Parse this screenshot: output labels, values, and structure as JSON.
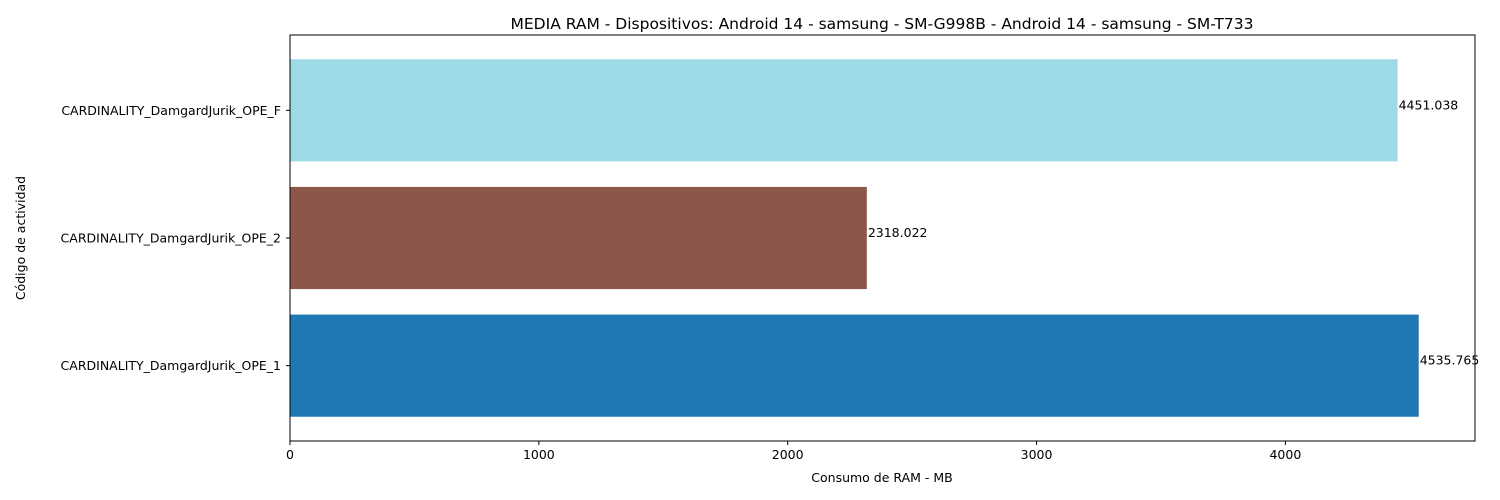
{
  "chart_data": {
    "type": "bar",
    "orientation": "horizontal",
    "title": "MEDIA RAM - Dispositivos: Android 14 - samsung - SM-G998B - Android 14 - samsung - SM-T733",
    "xlabel": "Consumo de RAM - MB",
    "ylabel": "Código de actividad",
    "xlim": [
      0,
      4762
    ],
    "xticks": [
      0,
      1000,
      2000,
      3000,
      4000
    ],
    "xtick_labels": [
      "0",
      "1000",
      "2000",
      "3000",
      "4000"
    ],
    "grid": false,
    "legend": "none",
    "categories": [
      "CARDINALITY_DamgardJurik_OPE_1",
      "CARDINALITY_DamgardJurik_OPE_2",
      "CARDINALITY_DamgardJurik_OPE_F"
    ],
    "values": [
      4535.765,
      2318.022,
      4451.038
    ],
    "value_labels": [
      "4535.765",
      "2318.022",
      "4451.038"
    ],
    "colors": [
      "#1f77b4",
      "#8c564b",
      "#9edae5"
    ]
  }
}
